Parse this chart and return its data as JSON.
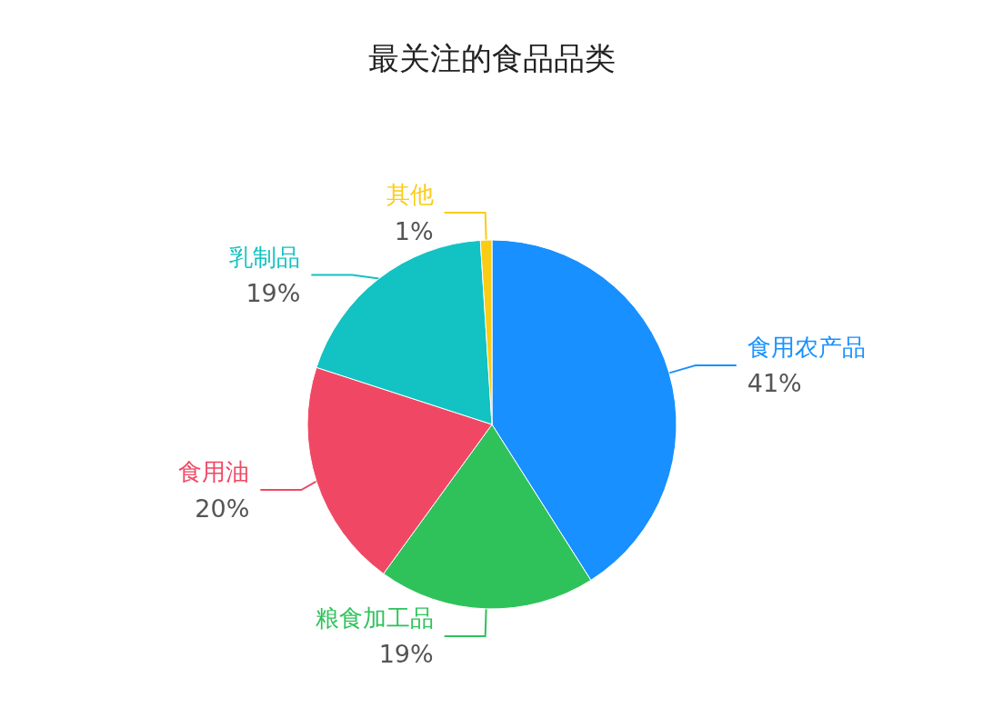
{
  "chart_data": {
    "type": "pie",
    "title": "最关注的食品品类",
    "categories": [
      "食用农产品",
      "粮食加工品",
      "食用油",
      "乳制品",
      "其他"
    ],
    "values": [
      41,
      19,
      20,
      19,
      1
    ],
    "colors": [
      "#1890ff",
      "#2fc25b",
      "#f04864",
      "#13c2c2",
      "#facc14"
    ],
    "value_labels": [
      "41%",
      "19%",
      "20%",
      "19%",
      "1%"
    ]
  }
}
